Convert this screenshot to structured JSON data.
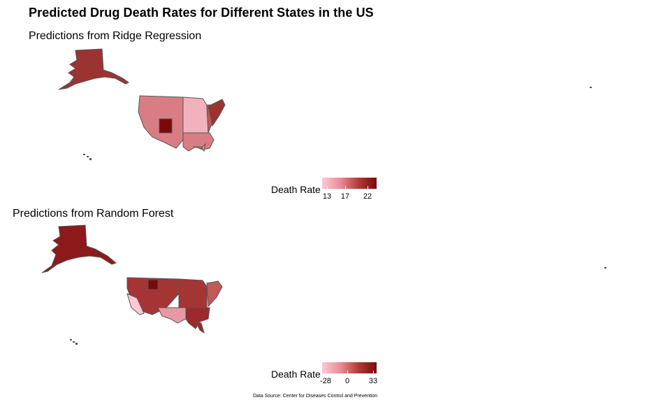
{
  "title": "Predicted Drug Death Rates for Different States in the US",
  "source": "Data Source: Center for Diseases Control and Prevention",
  "colors": {
    "low": "#ffc8d3",
    "mid": "#e98c97",
    "high": "#b33a3a",
    "max": "#7a0a0a",
    "border": "#555555"
  },
  "panels": [
    {
      "subtitle": "Predictions from Ridge Regression",
      "legend": {
        "title": "Death Rate",
        "ticks": [
          "13",
          "17",
          "22"
        ],
        "min": 12,
        "max": 24
      }
    },
    {
      "subtitle": "Predictions from Random Forest",
      "legend": {
        "title": "Death Rate",
        "ticks": [
          "-28",
          "0",
          "33"
        ],
        "min": -32,
        "max": 37
      }
    }
  ]
}
